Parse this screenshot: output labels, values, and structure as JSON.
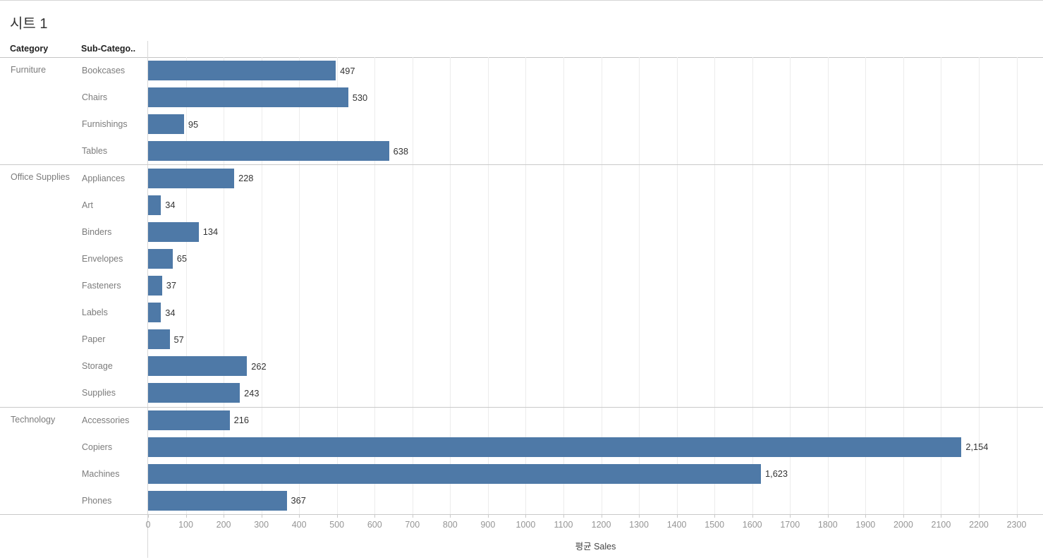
{
  "title": "시트 1",
  "columns": {
    "category": "Category",
    "subcategory": "Sub-Catego.."
  },
  "colors": {
    "bar": "#4e79a7",
    "gridline": "#ececec",
    "separator": "#c9c9c9",
    "row_label_text": "#7c7c7c",
    "value_label_text": "#333333",
    "tick_label_text": "#959595"
  },
  "chart_data": {
    "type": "bar",
    "orientation": "horizontal",
    "title": "시트 1",
    "xlabel": "평균 Sales",
    "xlim": [
      0,
      2370
    ],
    "xticks": [
      0,
      100,
      200,
      300,
      400,
      500,
      600,
      700,
      800,
      900,
      1000,
      1100,
      1200,
      1300,
      1400,
      1500,
      1600,
      1700,
      1800,
      1900,
      2000,
      2100,
      2200,
      2300
    ],
    "grid": true,
    "groups": [
      {
        "category": "Furniture",
        "rows": [
          {
            "label": "Bookcases",
            "value": 497,
            "display": "497"
          },
          {
            "label": "Chairs",
            "value": 530,
            "display": "530"
          },
          {
            "label": "Furnishings",
            "value": 95,
            "display": "95"
          },
          {
            "label": "Tables",
            "value": 638,
            "display": "638"
          }
        ]
      },
      {
        "category": "Office Supplies",
        "rows": [
          {
            "label": "Appliances",
            "value": 228,
            "display": "228"
          },
          {
            "label": "Art",
            "value": 34,
            "display": "34"
          },
          {
            "label": "Binders",
            "value": 134,
            "display": "134"
          },
          {
            "label": "Envelopes",
            "value": 65,
            "display": "65"
          },
          {
            "label": "Fasteners",
            "value": 37,
            "display": "37"
          },
          {
            "label": "Labels",
            "value": 34,
            "display": "34"
          },
          {
            "label": "Paper",
            "value": 57,
            "display": "57"
          },
          {
            "label": "Storage",
            "value": 262,
            "display": "262"
          },
          {
            "label": "Supplies",
            "value": 243,
            "display": "243"
          }
        ]
      },
      {
        "category": "Technology",
        "rows": [
          {
            "label": "Accessories",
            "value": 216,
            "display": "216"
          },
          {
            "label": "Copiers",
            "value": 2154,
            "display": "2,154"
          },
          {
            "label": "Machines",
            "value": 1623,
            "display": "1,623"
          },
          {
            "label": "Phones",
            "value": 367,
            "display": "367"
          }
        ]
      }
    ]
  }
}
